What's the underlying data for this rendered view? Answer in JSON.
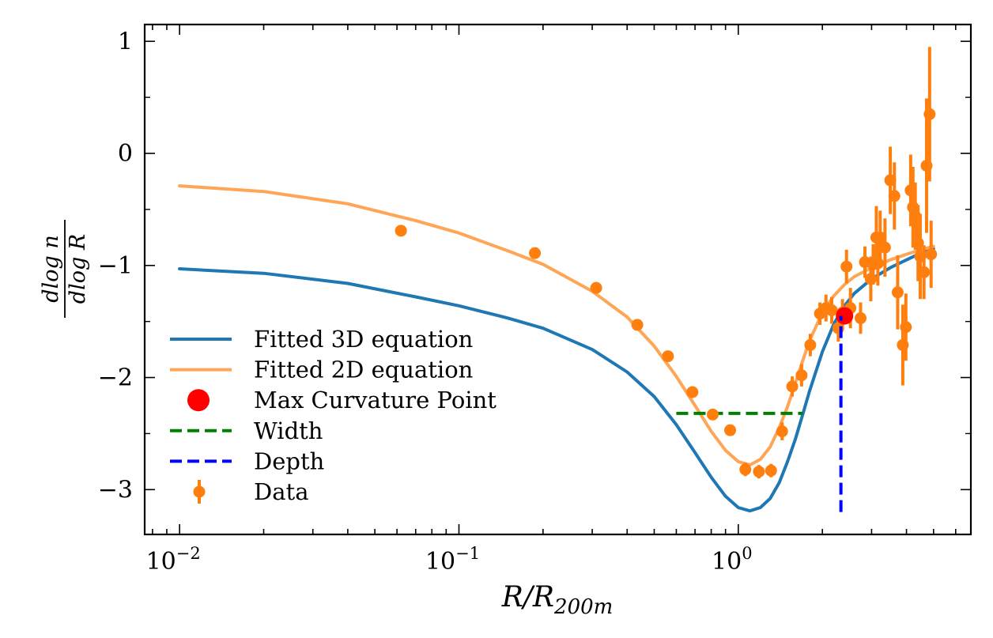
{
  "chart_data": {
    "type": "line",
    "xscale": "log",
    "xlim": [
      0.0075,
      6.8
    ],
    "ylim": [
      -3.4,
      1.15
    ],
    "xlabel": {
      "main": "R/R",
      "sub": "200m"
    },
    "ylabel": {
      "numerator": "dlog n",
      "denominator": "dlog R"
    },
    "x_major_ticks": [
      {
        "value": 0.01,
        "base": "10",
        "exp": "−2"
      },
      {
        "value": 0.1,
        "base": "10",
        "exp": "−1"
      },
      {
        "value": 1,
        "base": "10",
        "exp": "0"
      }
    ],
    "y_ticks": [
      {
        "value": 1,
        "label": "1"
      },
      {
        "value": 0,
        "label": "0"
      },
      {
        "value": -1,
        "label": "−1"
      },
      {
        "value": -2,
        "label": "−2"
      },
      {
        "value": -3,
        "label": "−3"
      }
    ],
    "series": [
      {
        "name": "Fitted 3D equation",
        "color": "#1f77b4",
        "x": [
          0.01,
          0.02,
          0.04,
          0.07,
          0.1,
          0.15,
          0.2,
          0.3,
          0.4,
          0.5,
          0.6,
          0.7,
          0.8,
          0.9,
          1.0,
          1.1,
          1.2,
          1.3,
          1.4,
          1.5,
          1.6,
          1.7,
          1.8,
          2.0,
          2.2,
          2.4,
          2.6,
          3.0,
          3.5,
          4.0,
          4.5,
          5.0
        ],
        "y": [
          -1.03,
          -1.07,
          -1.16,
          -1.28,
          -1.36,
          -1.47,
          -1.56,
          -1.75,
          -1.95,
          -2.17,
          -2.42,
          -2.67,
          -2.89,
          -3.06,
          -3.16,
          -3.19,
          -3.16,
          -3.08,
          -2.94,
          -2.75,
          -2.55,
          -2.33,
          -2.12,
          -1.77,
          -1.52,
          -1.36,
          -1.25,
          -1.12,
          -1.02,
          -0.95,
          -0.89,
          -0.85
        ]
      },
      {
        "name": "Fitted 2D equation",
        "color": "#ffa556",
        "x": [
          0.01,
          0.02,
          0.04,
          0.07,
          0.1,
          0.15,
          0.2,
          0.3,
          0.4,
          0.5,
          0.6,
          0.7,
          0.8,
          0.9,
          1.0,
          1.1,
          1.2,
          1.3,
          1.4,
          1.5,
          1.6,
          1.7,
          1.8,
          2.0,
          2.2,
          2.4,
          2.6,
          3.0,
          3.5,
          4.0,
          4.5,
          5.0
        ],
        "y": [
          -0.29,
          -0.34,
          -0.45,
          -0.6,
          -0.71,
          -0.87,
          -0.99,
          -1.23,
          -1.46,
          -1.72,
          -1.99,
          -2.25,
          -2.48,
          -2.65,
          -2.75,
          -2.78,
          -2.73,
          -2.62,
          -2.45,
          -2.26,
          -2.05,
          -1.85,
          -1.67,
          -1.42,
          -1.27,
          -1.17,
          -1.1,
          -1.02,
          -0.95,
          -0.9,
          -0.86,
          -0.83
        ]
      }
    ],
    "max_curvature_point": {
      "name": "Max Curvature Point",
      "color": "#ff0000",
      "x": 2.4,
      "y": -1.45
    },
    "width_line": {
      "name": "Width",
      "color": "#008000",
      "x": [
        0.6,
        1.7
      ],
      "y": -2.32
    },
    "depth_line": {
      "name": "Depth",
      "color": "#0000ff",
      "x": 2.33,
      "y": [
        -3.2,
        -1.45
      ]
    },
    "data": {
      "name": "Data",
      "color": "#ff7f0e",
      "x": [
        0.062,
        0.187,
        0.31,
        0.435,
        0.56,
        0.685,
        0.81,
        0.935,
        1.06,
        1.185,
        1.31,
        1.435,
        1.56,
        1.685,
        1.81,
        1.96,
        2.06,
        2.16,
        2.28,
        2.36,
        2.44,
        2.52,
        2.74,
        2.84,
        2.98,
        3.04,
        3.12,
        3.16,
        3.22,
        3.35,
        3.5,
        3.62,
        3.72,
        3.88,
        3.98,
        4.14,
        4.22,
        4.3,
        4.4,
        4.48,
        4.62,
        4.72,
        4.84,
        4.9
      ],
      "y": [
        -0.69,
        -0.89,
        -1.2,
        -1.53,
        -1.81,
        -2.13,
        -2.33,
        -2.47,
        -2.82,
        -2.84,
        -2.83,
        -2.48,
        -2.08,
        -1.98,
        -1.71,
        -1.43,
        -1.38,
        -1.4,
        -1.56,
        -1.42,
        -1.01,
        -1.38,
        -1.47,
        -0.97,
        -1.12,
        -0.99,
        -0.75,
        -0.98,
        -0.75,
        -0.84,
        -0.24,
        -0.38,
        -1.24,
        -1.71,
        -1.55,
        -0.33,
        -0.48,
        -0.56,
        -0.8,
        -0.92,
        -1.06,
        -0.11,
        0.35,
        -0.9
      ],
      "yerr": [
        0.02,
        0.02,
        0.02,
        0.03,
        0.04,
        0.04,
        0.04,
        0.05,
        0.06,
        0.06,
        0.06,
        0.08,
        0.09,
        0.1,
        0.1,
        0.1,
        0.12,
        0.12,
        0.12,
        0.12,
        0.15,
        0.18,
        0.14,
        0.14,
        0.2,
        0.18,
        0.28,
        0.2,
        0.24,
        0.26,
        0.3,
        0.3,
        0.33,
        0.36,
        0.3,
        0.32,
        0.36,
        0.3,
        0.34,
        0.38,
        0.24,
        0.6,
        0.6,
        0.3
      ]
    },
    "legend": {
      "location": "lower-left",
      "entries": [
        "Fitted 3D equation",
        "Fitted 2D equation",
        "Max Curvature Point",
        "Width",
        "Depth",
        "Data"
      ]
    }
  }
}
